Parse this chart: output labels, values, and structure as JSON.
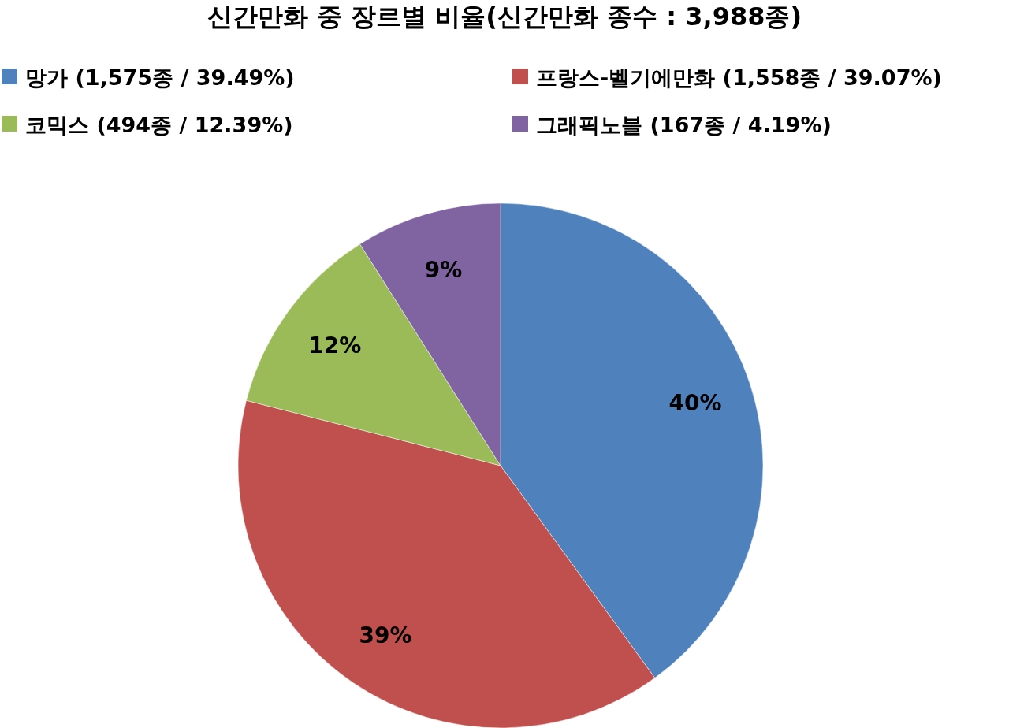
{
  "chart_data": {
    "type": "pie",
    "title": "신간만화 중 장르별 비율(신간만화 종수 : 3,988종)",
    "categories": [
      "망가 (1,575종 / 39.49%)",
      "프랑스-벨기에만화 (1,558종 / 39.07%)",
      "코믹스 (494종 / 12.39%)",
      "그래픽노블 (167종 / 4.19%)"
    ],
    "values": [
      40,
      39,
      12,
      9
    ],
    "colors": [
      "#4f81bd",
      "#c0504d",
      "#9bbb59",
      "#8064a2"
    ],
    "value_labels": [
      "40%",
      "39%",
      "12%",
      "9%"
    ],
    "legend": "top"
  }
}
